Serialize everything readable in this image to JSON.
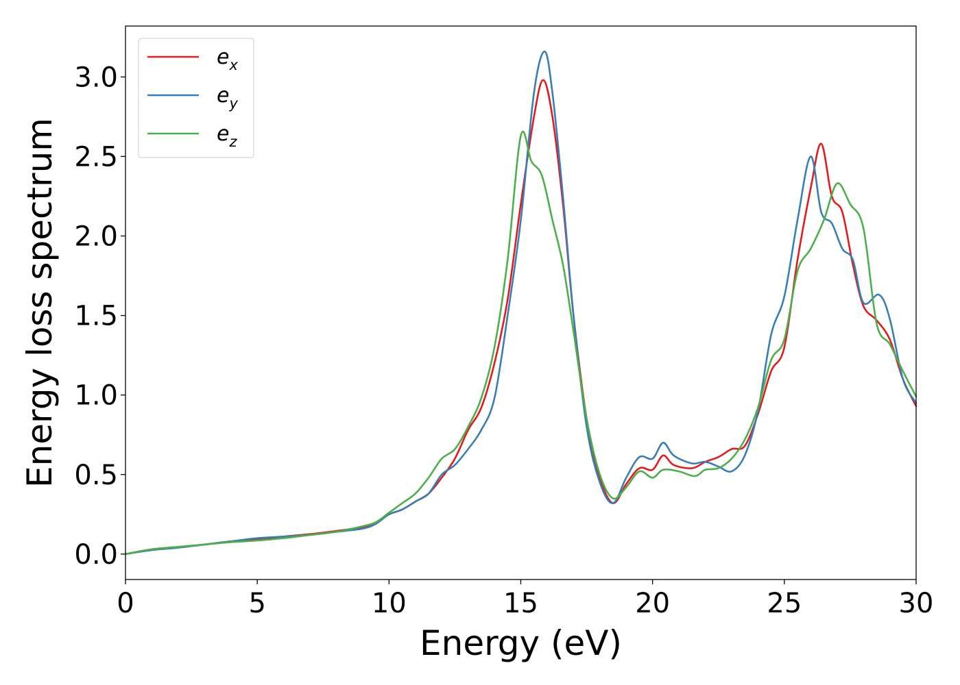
{
  "chart_data": {
    "type": "line",
    "title": "",
    "xlabel": "Energy (eV)",
    "ylabel": "Energy loss spectrum",
    "xlim": [
      0,
      30
    ],
    "ylim": [
      -0.16,
      3.32
    ],
    "xticks": [
      "0",
      "5",
      "10",
      "15",
      "20",
      "25",
      "30"
    ],
    "yticks": [
      "0.0",
      "0.5",
      "1.0",
      "1.5",
      "2.0",
      "2.5",
      "3.0"
    ],
    "grid": false,
    "legend_position": "top-left",
    "series": [
      {
        "name": "e",
        "subscript": "x",
        "color": "#e41a1c",
        "points": [
          [
            0,
            0
          ],
          [
            1,
            0.03
          ],
          [
            2,
            0.045
          ],
          [
            3,
            0.06
          ],
          [
            4,
            0.08
          ],
          [
            5,
            0.09
          ],
          [
            6,
            0.11
          ],
          [
            7,
            0.125
          ],
          [
            8,
            0.145
          ],
          [
            9,
            0.17
          ],
          [
            9.5,
            0.2
          ],
          [
            10,
            0.25
          ],
          [
            10.5,
            0.28
          ],
          [
            11,
            0.33
          ],
          [
            11.5,
            0.38
          ],
          [
            12,
            0.48
          ],
          [
            12.5,
            0.6
          ],
          [
            13,
            0.78
          ],
          [
            13.5,
            0.92
          ],
          [
            14,
            1.2
          ],
          [
            14.5,
            1.6
          ],
          [
            15,
            2.2
          ],
          [
            15.5,
            2.75
          ],
          [
            15.85,
            2.98
          ],
          [
            16.2,
            2.75
          ],
          [
            16.6,
            2.2
          ],
          [
            17,
            1.5
          ],
          [
            17.5,
            0.85
          ],
          [
            18,
            0.48
          ],
          [
            18.5,
            0.32
          ],
          [
            19,
            0.44
          ],
          [
            19.5,
            0.54
          ],
          [
            20,
            0.53
          ],
          [
            20.4,
            0.62
          ],
          [
            20.8,
            0.56
          ],
          [
            21.5,
            0.54
          ],
          [
            22,
            0.58
          ],
          [
            22.5,
            0.61
          ],
          [
            23,
            0.66
          ],
          [
            23.5,
            0.68
          ],
          [
            24,
            0.88
          ],
          [
            24.5,
            1.15
          ],
          [
            25,
            1.3
          ],
          [
            25.5,
            1.85
          ],
          [
            26,
            2.3
          ],
          [
            26.4,
            2.58
          ],
          [
            26.8,
            2.25
          ],
          [
            27.2,
            2.15
          ],
          [
            27.6,
            1.82
          ],
          [
            28,
            1.56
          ],
          [
            28.5,
            1.47
          ],
          [
            29,
            1.35
          ],
          [
            29.5,
            1.1
          ],
          [
            30,
            0.93
          ]
        ]
      },
      {
        "name": "e",
        "subscript": "y",
        "color": "#377eb8",
        "points": [
          [
            0,
            0
          ],
          [
            1,
            0.025
          ],
          [
            2,
            0.04
          ],
          [
            3,
            0.06
          ],
          [
            4,
            0.08
          ],
          [
            5,
            0.1
          ],
          [
            6,
            0.11
          ],
          [
            7,
            0.12
          ],
          [
            8,
            0.14
          ],
          [
            9,
            0.16
          ],
          [
            9.5,
            0.19
          ],
          [
            10,
            0.25
          ],
          [
            10.5,
            0.28
          ],
          [
            11,
            0.33
          ],
          [
            11.5,
            0.38
          ],
          [
            12,
            0.5
          ],
          [
            12.5,
            0.56
          ],
          [
            13,
            0.66
          ],
          [
            13.5,
            0.78
          ],
          [
            14,
            0.98
          ],
          [
            14.5,
            1.5
          ],
          [
            15,
            2.1
          ],
          [
            15.5,
            2.9
          ],
          [
            15.9,
            3.16
          ],
          [
            16.2,
            2.9
          ],
          [
            16.6,
            2.25
          ],
          [
            17,
            1.5
          ],
          [
            17.5,
            0.8
          ],
          [
            18,
            0.45
          ],
          [
            18.5,
            0.32
          ],
          [
            19,
            0.48
          ],
          [
            19.5,
            0.61
          ],
          [
            20,
            0.6
          ],
          [
            20.4,
            0.7
          ],
          [
            20.8,
            0.62
          ],
          [
            21.5,
            0.57
          ],
          [
            22,
            0.58
          ],
          [
            22.5,
            0.55
          ],
          [
            23,
            0.52
          ],
          [
            23.5,
            0.62
          ],
          [
            24,
            0.9
          ],
          [
            24.5,
            1.38
          ],
          [
            25,
            1.62
          ],
          [
            25.5,
            2.1
          ],
          [
            26,
            2.5
          ],
          [
            26.4,
            2.15
          ],
          [
            26.8,
            2.08
          ],
          [
            27.2,
            1.92
          ],
          [
            27.6,
            1.85
          ],
          [
            28,
            1.58
          ],
          [
            28.6,
            1.63
          ],
          [
            29,
            1.48
          ],
          [
            29.5,
            1.1
          ],
          [
            30,
            0.95
          ]
        ]
      },
      {
        "name": "e",
        "subscript": "z",
        "color": "#4daf4a",
        "points": [
          [
            0,
            0
          ],
          [
            1,
            0.03
          ],
          [
            2,
            0.045
          ],
          [
            3,
            0.06
          ],
          [
            4,
            0.075
          ],
          [
            5,
            0.085
          ],
          [
            6,
            0.1
          ],
          [
            7,
            0.12
          ],
          [
            8,
            0.14
          ],
          [
            9,
            0.175
          ],
          [
            9.5,
            0.2
          ],
          [
            10,
            0.26
          ],
          [
            10.5,
            0.32
          ],
          [
            11,
            0.38
          ],
          [
            11.5,
            0.48
          ],
          [
            12,
            0.6
          ],
          [
            12.5,
            0.66
          ],
          [
            13,
            0.8
          ],
          [
            13.5,
            0.98
          ],
          [
            14,
            1.3
          ],
          [
            14.5,
            1.85
          ],
          [
            15,
            2.63
          ],
          [
            15.4,
            2.47
          ],
          [
            15.8,
            2.38
          ],
          [
            16.2,
            2.1
          ],
          [
            16.6,
            1.82
          ],
          [
            17,
            1.4
          ],
          [
            17.5,
            0.85
          ],
          [
            18,
            0.5
          ],
          [
            18.5,
            0.35
          ],
          [
            19,
            0.42
          ],
          [
            19.5,
            0.52
          ],
          [
            20,
            0.48
          ],
          [
            20.4,
            0.53
          ],
          [
            21,
            0.52
          ],
          [
            21.6,
            0.49
          ],
          [
            22,
            0.53
          ],
          [
            22.5,
            0.54
          ],
          [
            23,
            0.6
          ],
          [
            23.5,
            0.72
          ],
          [
            24,
            0.92
          ],
          [
            24.5,
            1.22
          ],
          [
            25,
            1.35
          ],
          [
            25.5,
            1.78
          ],
          [
            26,
            1.92
          ],
          [
            26.5,
            2.1
          ],
          [
            27,
            2.33
          ],
          [
            27.5,
            2.2
          ],
          [
            28,
            2.05
          ],
          [
            28.5,
            1.45
          ],
          [
            29,
            1.32
          ],
          [
            29.5,
            1.15
          ],
          [
            30,
            0.99
          ]
        ]
      }
    ]
  }
}
